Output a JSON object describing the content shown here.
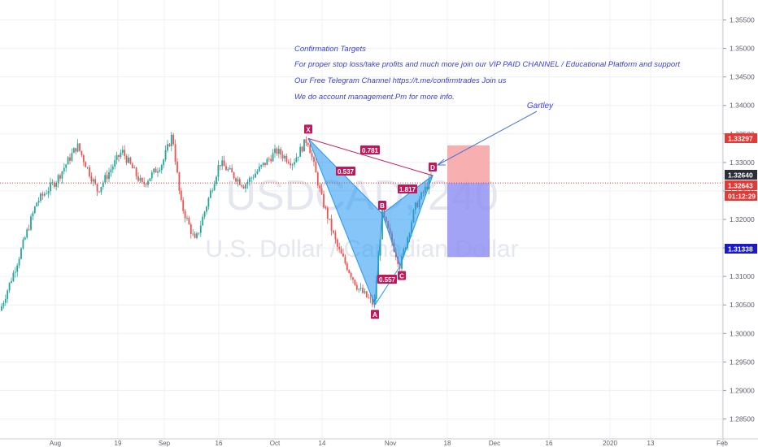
{
  "chart_data": {
    "type": "candlestick",
    "symbol": "USDCAD",
    "interval": "240",
    "watermark_symbol": "USDCAD, 240",
    "watermark_name": "U.S. Dollar / Canadian Dollar",
    "ylim": [
      1.2815,
      1.3585
    ],
    "y_ticks": [
      "1.35500",
      "1.35000",
      "1.34500",
      "1.34000",
      "1.33500",
      "1.33000",
      "1.32500",
      "1.32000",
      "1.31500",
      "1.31000",
      "1.30500",
      "1.30000",
      "1.29500",
      "1.29000",
      "1.28500"
    ],
    "x_ticks": [
      "Aug",
      "19",
      "Sep",
      "16",
      "Oct",
      "14",
      "Nov",
      "18",
      "Dec",
      "16",
      "2020",
      "13",
      "Feb"
    ],
    "last_price": 1.3264,
    "price_labels": [
      {
        "text": "1.33297",
        "value": 1.33297,
        "color": "#e53935"
      },
      {
        "text": "1.32640",
        "value": 1.3264,
        "color": "#2a2e39"
      },
      {
        "text": "1.32643",
        "value": 1.32643,
        "color": "#e53935"
      },
      {
        "text": "01:12:29",
        "value": 1.3246,
        "color": "#e53935"
      },
      {
        "text": "1.31338",
        "value": 1.31338,
        "color": "#1a1acc"
      }
    ],
    "harmonic": {
      "name": "Gartley",
      "points": [
        {
          "label": "X",
          "price": 1.3342
        },
        {
          "label": "A",
          "price": 1.305
        },
        {
          "label": "B",
          "price": 1.321
        },
        {
          "label": "C",
          "price": 1.3118
        },
        {
          "label": "D",
          "price": 1.3277
        }
      ],
      "ratios": [
        "0.537",
        "0.557",
        "1.817",
        "0.781"
      ]
    },
    "position": {
      "target": 1.333,
      "entry": 1.3264,
      "stop": 1.3134
    },
    "colors": {
      "up": "#26a69a",
      "down": "#ef5350",
      "pattern": "#2196f3",
      "pattern_label": "#c2185b",
      "note": "#3a3fd8"
    }
  },
  "notes": [
    "Confirmation Targets",
    "For proper stop loss/take profits and much more join our VIP PAID CHANNEL / Educational Platform and support",
    "Our Free Telegram Channel https://t.me/confirmtrades Join us",
    "We do account management.Pm for more info."
  ]
}
